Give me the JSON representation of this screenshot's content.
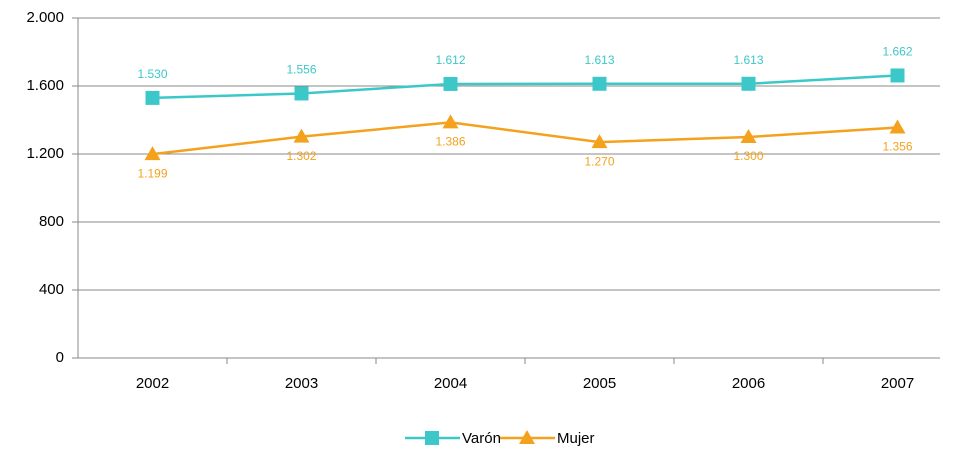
{
  "chart_data": {
    "type": "line",
    "categories": [
      "2002",
      "2003",
      "2004",
      "2005",
      "2006",
      "2007"
    ],
    "series": [
      {
        "name": "Varón",
        "color": "#3cc8c8",
        "marker": "square",
        "values": [
          1530,
          1556,
          1612,
          1613,
          1613,
          1662
        ],
        "value_labels": [
          "1.530",
          "1.556",
          "1.612",
          "1.613",
          "1.613",
          "1.662"
        ]
      },
      {
        "name": "Mujer",
        "color": "#f4a21e",
        "marker": "triangle",
        "values": [
          1199,
          1302,
          1386,
          1270,
          1300,
          1356
        ],
        "value_labels": [
          "1.199",
          "1.302",
          "1.386",
          "1.270",
          "1.300",
          "1.356"
        ]
      }
    ],
    "ylim": [
      0,
      2000
    ],
    "yticks": [
      0,
      400,
      800,
      {
        "value": 1200,
        "label": "1.200"
      },
      {
        "value": 1600,
        "label": "1.600"
      },
      {
        "value": 2000,
        "label": "2.000"
      }
    ],
    "grid": true,
    "legend": "bottom"
  }
}
